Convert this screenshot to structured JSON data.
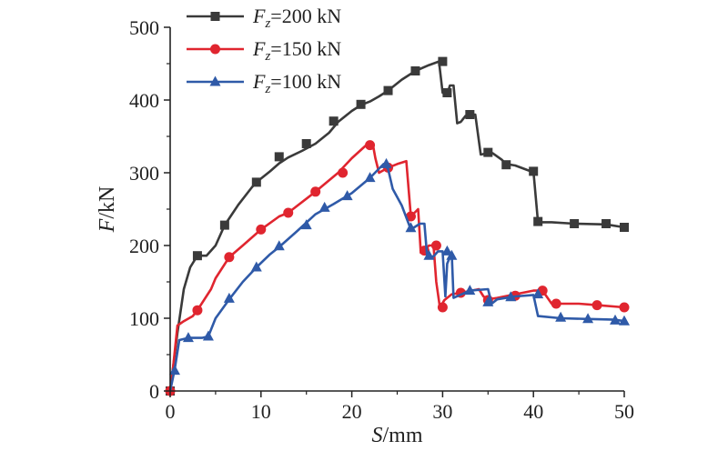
{
  "chart_data": {
    "type": "line",
    "title": "",
    "xlabel_italic": "S",
    "xlabel_rest": "/mm",
    "ylabel_italic": "F",
    "ylabel_rest": "/kN",
    "xlim": [
      0,
      50
    ],
    "ylim": [
      0,
      500
    ],
    "xticks": [
      "0",
      "10",
      "20",
      "30",
      "40",
      "50"
    ],
    "yticks": [
      "0",
      "100",
      "200",
      "300",
      "400",
      "500"
    ],
    "grid": false,
    "legend_position": "top-left",
    "series": [
      {
        "name_prefix": "F",
        "name_sub": "z",
        "name_suffix": "=200 kN",
        "color": "#3a3a3a",
        "marker": "square",
        "points": [
          [
            0,
            0
          ],
          [
            0.3,
            30
          ],
          [
            0.8,
            80
          ],
          [
            1.5,
            140
          ],
          [
            2.2,
            170
          ],
          [
            3,
            186
          ],
          [
            4,
            186
          ],
          [
            5,
            200
          ],
          [
            6,
            228
          ],
          [
            7.5,
            256
          ],
          [
            9,
            280
          ],
          [
            9.5,
            287
          ],
          [
            11,
            302
          ],
          [
            12,
            313
          ],
          [
            13,
            321
          ],
          [
            14.5,
            330
          ],
          [
            16,
            340
          ],
          [
            17.5,
            355
          ],
          [
            18.5,
            370
          ],
          [
            20,
            385
          ],
          [
            21,
            393
          ],
          [
            22,
            398
          ],
          [
            23,
            405
          ],
          [
            24,
            413
          ],
          [
            25.5,
            428
          ],
          [
            27,
            440
          ],
          [
            28.5,
            448
          ],
          [
            29.6,
            453
          ],
          [
            30,
            410
          ],
          [
            30.5,
            408
          ],
          [
            30.8,
            420
          ],
          [
            31.2,
            420
          ],
          [
            31.6,
            368
          ],
          [
            32,
            370
          ],
          [
            32.5,
            378
          ],
          [
            33,
            380
          ],
          [
            33.6,
            380
          ],
          [
            34.2,
            325
          ],
          [
            35,
            327
          ],
          [
            35.5,
            327
          ],
          [
            36.5,
            318
          ],
          [
            37,
            312
          ],
          [
            38,
            310
          ],
          [
            39.5,
            303
          ],
          [
            40,
            302
          ],
          [
            40.5,
            232
          ],
          [
            42,
            232
          ],
          [
            44.5,
            230
          ],
          [
            48,
            229
          ],
          [
            50,
            225
          ]
        ],
        "markers": [
          [
            0,
            0
          ],
          [
            3,
            186
          ],
          [
            6,
            228
          ],
          [
            9.5,
            287
          ],
          [
            12,
            322
          ],
          [
            15,
            340
          ],
          [
            18,
            371
          ],
          [
            21,
            394
          ],
          [
            24,
            413
          ],
          [
            27,
            440
          ],
          [
            30,
            453
          ],
          [
            30.5,
            410
          ],
          [
            33,
            380
          ],
          [
            35,
            328
          ],
          [
            37,
            311
          ],
          [
            40,
            302
          ],
          [
            40.5,
            233
          ],
          [
            44.5,
            230
          ],
          [
            48,
            230
          ],
          [
            50,
            225
          ]
        ]
      },
      {
        "name_prefix": "F",
        "name_sub": "z",
        "name_suffix": "=150 kN",
        "color": "#e0252f",
        "marker": "circle",
        "points": [
          [
            0,
            0
          ],
          [
            0.3,
            30
          ],
          [
            0.8,
            90
          ],
          [
            1.5,
            96
          ],
          [
            2.5,
            103
          ],
          [
            3,
            111
          ],
          [
            4.5,
            140
          ],
          [
            5,
            155
          ],
          [
            6.5,
            184
          ],
          [
            8,
            200
          ],
          [
            10,
            222
          ],
          [
            12,
            240
          ],
          [
            13,
            245
          ],
          [
            16,
            274
          ],
          [
            18.5,
            300
          ],
          [
            20,
            320
          ],
          [
            21.5,
            337
          ],
          [
            22.3,
            340
          ],
          [
            22.6,
            320
          ],
          [
            23,
            300
          ],
          [
            24,
            307
          ],
          [
            25,
            312
          ],
          [
            26,
            316
          ],
          [
            26.5,
            240
          ],
          [
            27.3,
            250
          ],
          [
            27.6,
            190
          ],
          [
            28,
            193
          ],
          [
            28.5,
            200
          ],
          [
            29,
            200
          ],
          [
            29.3,
            150
          ],
          [
            29.7,
            115
          ],
          [
            30.2,
            125
          ],
          [
            31,
            133
          ],
          [
            32,
            135
          ],
          [
            34,
            140
          ],
          [
            34.5,
            130
          ],
          [
            35,
            126
          ],
          [
            36,
            128
          ],
          [
            38,
            133
          ],
          [
            40,
            138
          ],
          [
            41,
            138
          ],
          [
            42,
            120
          ],
          [
            45,
            120
          ],
          [
            47,
            118
          ],
          [
            50,
            115
          ]
        ],
        "markers": [
          [
            0,
            0
          ],
          [
            3,
            111
          ],
          [
            6.5,
            184
          ],
          [
            10,
            222
          ],
          [
            13,
            245
          ],
          [
            16,
            274
          ],
          [
            19,
            300
          ],
          [
            22,
            338
          ],
          [
            24,
            307
          ],
          [
            26.5,
            240
          ],
          [
            28,
            193
          ],
          [
            29.3,
            200
          ],
          [
            30,
            115
          ],
          [
            32,
            135
          ],
          [
            35,
            125
          ],
          [
            38,
            131
          ],
          [
            41,
            138
          ],
          [
            42.5,
            120
          ],
          [
            47,
            118
          ],
          [
            50,
            115
          ]
        ]
      },
      {
        "name_prefix": "F",
        "name_sub": "z",
        "name_suffix": "=100 kN",
        "color": "#2f5aa8",
        "marker": "triangle",
        "points": [
          [
            0,
            0
          ],
          [
            0.5,
            30
          ],
          [
            1,
            70
          ],
          [
            2,
            73
          ],
          [
            3.5,
            73
          ],
          [
            4.2,
            75
          ],
          [
            5,
            100
          ],
          [
            6.5,
            126
          ],
          [
            8,
            150
          ],
          [
            9.5,
            170
          ],
          [
            11,
            188
          ],
          [
            12,
            198
          ],
          [
            14,
            220
          ],
          [
            16,
            243
          ],
          [
            18,
            257
          ],
          [
            20,
            272
          ],
          [
            22,
            293
          ],
          [
            23.5,
            312
          ],
          [
            24,
            305
          ],
          [
            24.5,
            278
          ],
          [
            25.5,
            255
          ],
          [
            26.5,
            222
          ],
          [
            27.5,
            230
          ],
          [
            28,
            230
          ],
          [
            28.3,
            185
          ],
          [
            29,
            185
          ],
          [
            29.5,
            192
          ],
          [
            30,
            192
          ],
          [
            30.3,
            130
          ],
          [
            30.5,
            175
          ],
          [
            31,
            190
          ],
          [
            31.2,
            128
          ],
          [
            33,
            138
          ],
          [
            35,
            140
          ],
          [
            35.4,
            120
          ],
          [
            36,
            126
          ],
          [
            38,
            130
          ],
          [
            40,
            132
          ],
          [
            40.5,
            103
          ],
          [
            43,
            100
          ],
          [
            46,
            99
          ],
          [
            49,
            98
          ],
          [
            50,
            96
          ]
        ],
        "markers": [
          [
            0.5,
            28
          ],
          [
            2,
            73
          ],
          [
            4.2,
            75
          ],
          [
            6.5,
            127
          ],
          [
            9.5,
            170
          ],
          [
            12,
            199
          ],
          [
            15,
            228
          ],
          [
            17,
            252
          ],
          [
            19.5,
            268
          ],
          [
            22,
            293
          ],
          [
            23.8,
            312
          ],
          [
            26.5,
            224
          ],
          [
            28.5,
            186
          ],
          [
            30.5,
            192
          ],
          [
            31,
            186
          ],
          [
            33,
            138
          ],
          [
            35,
            122
          ],
          [
            37.5,
            129
          ],
          [
            40.5,
            133
          ],
          [
            43,
            101
          ],
          [
            46,
            99
          ],
          [
            49,
            97
          ],
          [
            50,
            96
          ]
        ]
      }
    ]
  }
}
